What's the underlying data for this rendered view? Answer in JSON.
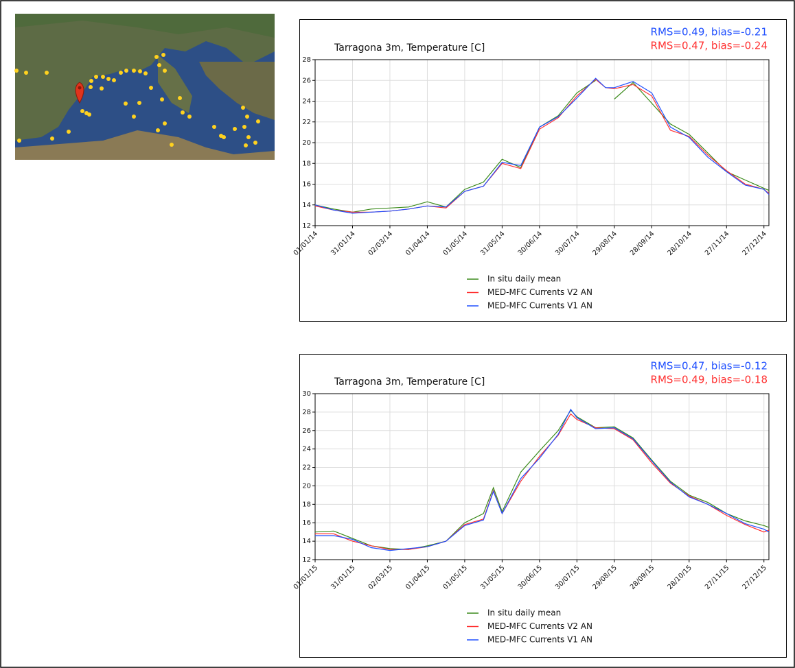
{
  "chart_data": [
    {
      "type": "line",
      "title": "Tarragona 3m, Temperature [C]",
      "annotations": [
        {
          "text": "RMS=0.49, bias=-0.21",
          "color": "#1f4fff"
        },
        {
          "text": "RMS=0.47, bias=-0.24",
          "color": "#ff3030"
        }
      ],
      "x": [
        "01/01/14",
        "16/01/14",
        "31/01/14",
        "15/02/14",
        "02/03/14",
        "17/03/14",
        "01/04/14",
        "16/04/14",
        "01/05/14",
        "16/05/14",
        "31/05/14",
        "15/06/14",
        "30/06/14",
        "15/07/14",
        "30/07/14",
        "14/08/14",
        "22/08/14",
        "29/08/14",
        "13/09/14",
        "28/09/14",
        "13/10/14",
        "28/10/14",
        "12/11/14",
        "27/11/14",
        "12/12/14",
        "27/12/14",
        "31/12/14"
      ],
      "series": [
        {
          "name": "In situ daily mean",
          "color": "#3a8a1a",
          "values": [
            14.0,
            13.6,
            13.3,
            13.6,
            13.7,
            13.8,
            14.3,
            13.8,
            15.5,
            16.2,
            18.4,
            17.6,
            21.5,
            22.6,
            24.8,
            26.0,
            null,
            24.2,
            25.8,
            23.8,
            21.8,
            20.8,
            19.0,
            17.2,
            16.4,
            15.6,
            15.4
          ]
        },
        {
          "name": "MED-MFC Currents V2 AN",
          "color": "#ff3030",
          "values": [
            13.9,
            13.5,
            13.3,
            13.3,
            13.4,
            13.6,
            13.9,
            13.7,
            15.3,
            15.8,
            18.0,
            17.5,
            21.3,
            22.4,
            24.5,
            26.1,
            25.3,
            25.2,
            25.6,
            24.5,
            21.2,
            20.6,
            18.8,
            17.3,
            16.0,
            15.5,
            15.1
          ]
        },
        {
          "name": "MED-MFC Currents V1 AN",
          "color": "#1f4fff",
          "values": [
            14.0,
            13.5,
            13.2,
            13.3,
            13.4,
            13.6,
            13.9,
            13.8,
            15.3,
            15.8,
            18.1,
            17.8,
            21.5,
            22.5,
            24.3,
            26.2,
            25.3,
            25.3,
            25.9,
            24.8,
            21.5,
            20.5,
            18.6,
            17.2,
            15.9,
            15.5,
            15.0
          ]
        }
      ],
      "xlim": [
        "01/01/14",
        "31/12/14"
      ],
      "xticks": [
        "01/01/14",
        "31/01/14",
        "02/03/14",
        "01/04/14",
        "01/05/14",
        "31/05/14",
        "30/06/14",
        "30/07/14",
        "29/08/14",
        "28/09/14",
        "28/10/14",
        "27/11/14",
        "27/12/14"
      ],
      "ylim": [
        12,
        28
      ],
      "yticks": [
        12,
        14,
        16,
        18,
        20,
        22,
        24,
        26,
        28
      ],
      "grid": true
    },
    {
      "type": "line",
      "title": "Tarragona 3m, Temperature [C]",
      "annotations": [
        {
          "text": "RMS=0.47, bias=-0.12",
          "color": "#1f4fff"
        },
        {
          "text": "RMS=0.49, bias=-0.18",
          "color": "#ff3030"
        }
      ],
      "x": [
        "01/01/15",
        "16/01/15",
        "31/01/15",
        "15/02/15",
        "02/03/15",
        "17/03/15",
        "01/04/15",
        "16/04/15",
        "01/05/15",
        "16/05/15",
        "24/05/15",
        "31/05/15",
        "15/06/15",
        "30/06/15",
        "15/07/15",
        "25/07/15",
        "30/07/15",
        "14/08/15",
        "29/08/15",
        "13/09/15",
        "28/09/15",
        "13/10/15",
        "28/10/15",
        "12/11/15",
        "27/11/15",
        "12/12/15",
        "27/12/15",
        "31/12/15"
      ],
      "series": [
        {
          "name": "In situ daily mean",
          "color": "#3a8a1a",
          "values": [
            15.0,
            15.1,
            14.3,
            13.5,
            13.2,
            13.1,
            13.5,
            14.0,
            16.0,
            17.0,
            19.8,
            17.2,
            21.5,
            23.8,
            26.0,
            28.2,
            27.5,
            26.3,
            26.4,
            25.2,
            22.8,
            20.5,
            19.0,
            18.2,
            17.0,
            16.2,
            15.7,
            15.5
          ]
        },
        {
          "name": "MED-MFC Currents V2 AN",
          "color": "#ff3030",
          "values": [
            14.8,
            14.8,
            14.0,
            13.5,
            13.1,
            13.1,
            13.4,
            14.0,
            15.8,
            16.4,
            19.5,
            17.0,
            20.5,
            23.2,
            25.5,
            27.8,
            27.2,
            26.3,
            26.2,
            25.0,
            22.5,
            20.3,
            18.9,
            18.0,
            16.8,
            15.8,
            15.0,
            15.2
          ]
        },
        {
          "name": "MED-MFC Currents V1 AN",
          "color": "#1f4fff",
          "values": [
            14.6,
            14.6,
            14.2,
            13.3,
            13.0,
            13.2,
            13.4,
            14.0,
            15.7,
            16.3,
            19.4,
            17.0,
            20.8,
            23.0,
            25.6,
            28.3,
            27.4,
            26.2,
            26.3,
            25.1,
            22.7,
            20.4,
            18.8,
            18.0,
            17.0,
            15.9,
            15.3,
            15.0
          ]
        }
      ],
      "xlim": [
        "01/01/15",
        "31/12/15"
      ],
      "xticks": [
        "01/01/15",
        "31/01/15",
        "02/03/15",
        "01/04/15",
        "01/05/15",
        "31/05/15",
        "30/06/15",
        "30/07/15",
        "29/08/15",
        "28/09/15",
        "28/10/15",
        "27/11/15",
        "27/12/15"
      ],
      "ylim": [
        12,
        30
      ],
      "yticks": [
        12,
        14,
        16,
        18,
        20,
        22,
        24,
        26,
        28,
        30
      ],
      "grid": true
    }
  ]
}
